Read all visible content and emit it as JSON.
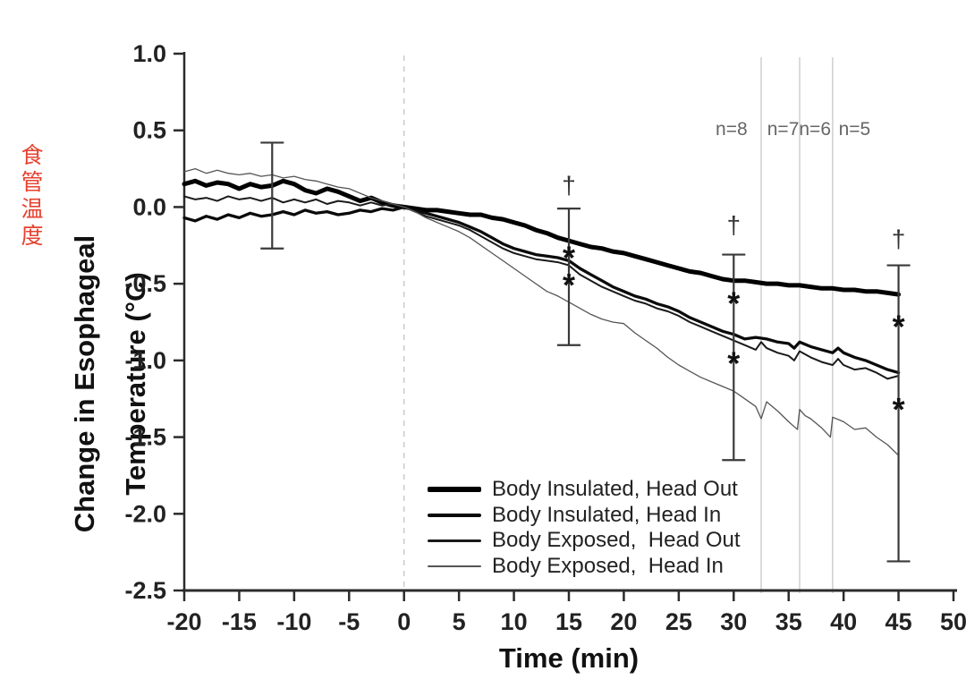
{
  "side_note": {
    "text": "食管温度",
    "color": "#e8412f"
  },
  "chart_data": {
    "type": "line",
    "title": "",
    "xlabel": "Time (min)",
    "ylabel_line1": "Change in Esophageal",
    "ylabel_line2": "Temperature (°C)",
    "xlim": [
      -20,
      50
    ],
    "ylim": [
      -2.5,
      1.0
    ],
    "x_ticks": [
      "-20",
      "-15",
      "-10",
      "-5",
      "0",
      "5",
      "10",
      "15",
      "20",
      "25",
      "30",
      "35",
      "40",
      "45",
      "50"
    ],
    "x_tick_values": [
      -20,
      -15,
      -10,
      -5,
      0,
      5,
      10,
      15,
      20,
      25,
      30,
      35,
      40,
      45,
      50
    ],
    "y_ticks": [
      "1.0",
      "0.5",
      "0.0",
      "-0.5",
      "-1.0",
      "-1.5",
      "-2.0",
      "-2.5"
    ],
    "y_tick_values": [
      1.0,
      0.5,
      0.0,
      -0.5,
      -1.0,
      -1.5,
      -2.0,
      -2.5
    ],
    "grid": "off",
    "reference_lines": {
      "dashed_x": 0,
      "gray_solid_x": [
        32.5,
        36,
        39
      ]
    },
    "n_labels": [
      {
        "text": "n=8",
        "t": 29.8,
        "v": 0.47
      },
      {
        "text": "n=7",
        "t": 34.5,
        "v": 0.47
      },
      {
        "text": "n=6",
        "t": 37.4,
        "v": 0.47
      },
      {
        "text": "n=5",
        "t": 41.0,
        "v": 0.47
      }
    ],
    "error_bars": [
      {
        "t": -12,
        "hi": 0.42,
        "lo": -0.27
      },
      {
        "t": 15,
        "hi": -0.01,
        "lo": -0.9
      },
      {
        "t": 30,
        "hi": -0.31,
        "lo": -1.65
      },
      {
        "t": 45,
        "hi": -0.38,
        "lo": -2.31
      }
    ],
    "daggers": [
      {
        "symbol": "†",
        "t": 15,
        "v": 0.14
      },
      {
        "symbol": "†",
        "t": 30,
        "v": -0.12
      },
      {
        "symbol": "†",
        "t": 45,
        "v": -0.21
      }
    ],
    "asterisks": [
      {
        "symbol": "*",
        "t": 15,
        "v": -0.32
      },
      {
        "symbol": "*",
        "t": 15,
        "v": -0.5
      },
      {
        "symbol": "*",
        "t": 30,
        "v": -0.62
      },
      {
        "symbol": "*",
        "t": 30,
        "v": -1.01
      },
      {
        "symbol": "*",
        "t": 45,
        "v": -0.77
      },
      {
        "symbol": "*",
        "t": 45,
        "v": -1.31
      }
    ],
    "legend_position": "bottom-center-inside",
    "series": [
      {
        "name": "Body Insulated, Head Out",
        "color": "#000000",
        "width": 5,
        "points": [
          [
            -20,
            0.15
          ],
          [
            -19,
            0.17
          ],
          [
            -18,
            0.14
          ],
          [
            -17,
            0.16
          ],
          [
            -16,
            0.15
          ],
          [
            -15,
            0.12
          ],
          [
            -14,
            0.15
          ],
          [
            -13,
            0.13
          ],
          [
            -12,
            0.14
          ],
          [
            -11,
            0.17
          ],
          [
            -10,
            0.15
          ],
          [
            -9,
            0.11
          ],
          [
            -8,
            0.09
          ],
          [
            -7,
            0.12
          ],
          [
            -6,
            0.1
          ],
          [
            -5,
            0.07
          ],
          [
            -4,
            0.04
          ],
          [
            -3,
            0.06
          ],
          [
            -2,
            0.03
          ],
          [
            -1,
            0.01
          ],
          [
            0,
            0
          ],
          [
            1,
            -0.01
          ],
          [
            2,
            -0.02
          ],
          [
            3,
            -0.02
          ],
          [
            4,
            -0.03
          ],
          [
            5,
            -0.04
          ],
          [
            6,
            -0.05
          ],
          [
            7,
            -0.05
          ],
          [
            8,
            -0.07
          ],
          [
            9,
            -0.08
          ],
          [
            10,
            -0.1
          ],
          [
            11,
            -0.12
          ],
          [
            12,
            -0.15
          ],
          [
            13,
            -0.17
          ],
          [
            14,
            -0.2
          ],
          [
            15,
            -0.22
          ],
          [
            16,
            -0.24
          ],
          [
            17,
            -0.26
          ],
          [
            18,
            -0.27
          ],
          [
            19,
            -0.29
          ],
          [
            20,
            -0.3
          ],
          [
            21,
            -0.32
          ],
          [
            22,
            -0.34
          ],
          [
            23,
            -0.36
          ],
          [
            24,
            -0.38
          ],
          [
            25,
            -0.4
          ],
          [
            26,
            -0.42
          ],
          [
            27,
            -0.43
          ],
          [
            28,
            -0.45
          ],
          [
            29,
            -0.47
          ],
          [
            30,
            -0.48
          ],
          [
            31,
            -0.48
          ],
          [
            32,
            -0.49
          ],
          [
            33,
            -0.5
          ],
          [
            34,
            -0.5
          ],
          [
            35,
            -0.51
          ],
          [
            36,
            -0.51
          ],
          [
            37,
            -0.52
          ],
          [
            38,
            -0.53
          ],
          [
            39,
            -0.53
          ],
          [
            40,
            -0.54
          ],
          [
            41,
            -0.54
          ],
          [
            42,
            -0.55
          ],
          [
            43,
            -0.55
          ],
          [
            44,
            -0.56
          ],
          [
            45,
            -0.57
          ]
        ]
      },
      {
        "name": "Body Insulated, Head In",
        "color": "#0a0a0a",
        "width": 3.3,
        "points": [
          [
            -20,
            -0.07
          ],
          [
            -19,
            -0.09
          ],
          [
            -18,
            -0.06
          ],
          [
            -17,
            -0.08
          ],
          [
            -16,
            -0.05
          ],
          [
            -15,
            -0.07
          ],
          [
            -14,
            -0.04
          ],
          [
            -13,
            -0.06
          ],
          [
            -12,
            -0.05
          ],
          [
            -11,
            -0.03
          ],
          [
            -10,
            -0.05
          ],
          [
            -9,
            -0.02
          ],
          [
            -8,
            -0.04
          ],
          [
            -7,
            -0.03
          ],
          [
            -6,
            -0.05
          ],
          [
            -5,
            -0.04
          ],
          [
            -4,
            -0.02
          ],
          [
            -3,
            -0.03
          ],
          [
            -2,
            -0.01
          ],
          [
            -1,
            -0.02
          ],
          [
            0,
            0
          ],
          [
            1,
            -0.02
          ],
          [
            2,
            -0.04
          ],
          [
            3,
            -0.06
          ],
          [
            4,
            -0.08
          ],
          [
            5,
            -0.1
          ],
          [
            6,
            -0.13
          ],
          [
            7,
            -0.16
          ],
          [
            8,
            -0.2
          ],
          [
            9,
            -0.24
          ],
          [
            10,
            -0.27
          ],
          [
            11,
            -0.29
          ],
          [
            12,
            -0.31
          ],
          [
            13,
            -0.32
          ],
          [
            14,
            -0.33
          ],
          [
            15,
            -0.35
          ],
          [
            16,
            -0.4
          ],
          [
            17,
            -0.44
          ],
          [
            18,
            -0.48
          ],
          [
            19,
            -0.52
          ],
          [
            20,
            -0.55
          ],
          [
            21,
            -0.58
          ],
          [
            22,
            -0.6
          ],
          [
            23,
            -0.63
          ],
          [
            24,
            -0.65
          ],
          [
            25,
            -0.68
          ],
          [
            26,
            -0.72
          ],
          [
            27,
            -0.75
          ],
          [
            28,
            -0.78
          ],
          [
            29,
            -0.81
          ],
          [
            30,
            -0.83
          ],
          [
            31,
            -0.86
          ],
          [
            32,
            -0.85
          ],
          [
            33,
            -0.86
          ],
          [
            34,
            -0.88
          ],
          [
            35,
            -0.89
          ],
          [
            35.5,
            -0.92
          ],
          [
            36,
            -0.88
          ],
          [
            37,
            -0.91
          ],
          [
            38,
            -0.93
          ],
          [
            39,
            -0.95
          ],
          [
            39.5,
            -0.92
          ],
          [
            40,
            -0.95
          ],
          [
            41,
            -0.98
          ],
          [
            42,
            -1.0
          ],
          [
            43,
            -1.03
          ],
          [
            44,
            -1.06
          ],
          [
            45,
            -1.08
          ]
        ]
      },
      {
        "name": "Body Exposed,  Head Out",
        "color": "#1a1a1a",
        "width": 2,
        "points": [
          [
            -20,
            0.07
          ],
          [
            -19,
            0.05
          ],
          [
            -18,
            0.06
          ],
          [
            -17,
            0.04
          ],
          [
            -16,
            0.07
          ],
          [
            -15,
            0.05
          ],
          [
            -14,
            0.06
          ],
          [
            -13,
            0.04
          ],
          [
            -12,
            0.06
          ],
          [
            -11,
            0.03
          ],
          [
            -10,
            0.05
          ],
          [
            -9,
            0.03
          ],
          [
            -8,
            0.05
          ],
          [
            -7,
            0.02
          ],
          [
            -6,
            0.04
          ],
          [
            -5,
            0.03
          ],
          [
            -4,
            0.01
          ],
          [
            -3,
            0.03
          ],
          [
            -2,
            0.01
          ],
          [
            -1,
            0.02
          ],
          [
            0,
            0
          ],
          [
            1,
            -0.03
          ],
          [
            2,
            -0.06
          ],
          [
            3,
            -0.08
          ],
          [
            4,
            -0.1
          ],
          [
            5,
            -0.12
          ],
          [
            6,
            -0.15
          ],
          [
            7,
            -0.19
          ],
          [
            8,
            -0.23
          ],
          [
            9,
            -0.27
          ],
          [
            10,
            -0.3
          ],
          [
            11,
            -0.32
          ],
          [
            12,
            -0.34
          ],
          [
            13,
            -0.35
          ],
          [
            14,
            -0.36
          ],
          [
            15,
            -0.38
          ],
          [
            16,
            -0.44
          ],
          [
            17,
            -0.48
          ],
          [
            18,
            -0.52
          ],
          [
            19,
            -0.55
          ],
          [
            20,
            -0.58
          ],
          [
            21,
            -0.61
          ],
          [
            22,
            -0.63
          ],
          [
            23,
            -0.66
          ],
          [
            24,
            -0.68
          ],
          [
            25,
            -0.71
          ],
          [
            26,
            -0.75
          ],
          [
            27,
            -0.78
          ],
          [
            28,
            -0.81
          ],
          [
            29,
            -0.84
          ],
          [
            30,
            -0.87
          ],
          [
            31,
            -0.9
          ],
          [
            32,
            -0.93
          ],
          [
            32.5,
            -0.88
          ],
          [
            33,
            -0.92
          ],
          [
            34,
            -0.95
          ],
          [
            35,
            -0.97
          ],
          [
            35.5,
            -1.0
          ],
          [
            36,
            -0.94
          ],
          [
            37,
            -0.98
          ],
          [
            38,
            -1.01
          ],
          [
            39,
            -1.03
          ],
          [
            39.5,
            -0.99
          ],
          [
            40,
            -1.03
          ],
          [
            41,
            -1.06
          ],
          [
            42,
            -1.05
          ],
          [
            43,
            -1.08
          ],
          [
            44,
            -1.12
          ],
          [
            45,
            -1.1
          ]
        ]
      },
      {
        "name": "Body Exposed,  Head In",
        "color": "#555555",
        "width": 1.3,
        "points": [
          [
            -20,
            0.23
          ],
          [
            -19,
            0.25
          ],
          [
            -18,
            0.22
          ],
          [
            -17,
            0.24
          ],
          [
            -16,
            0.22
          ],
          [
            -15,
            0.21
          ],
          [
            -14,
            0.22
          ],
          [
            -13,
            0.2
          ],
          [
            -12,
            0.21
          ],
          [
            -11,
            0.19
          ],
          [
            -10,
            0.2
          ],
          [
            -9,
            0.18
          ],
          [
            -8,
            0.17
          ],
          [
            -7,
            0.15
          ],
          [
            -6,
            0.13
          ],
          [
            -5,
            0.12
          ],
          [
            -4,
            0.09
          ],
          [
            -3,
            0.06
          ],
          [
            -2,
            0.04
          ],
          [
            -1,
            0.02
          ],
          [
            0,
            0
          ],
          [
            1,
            -0.03
          ],
          [
            2,
            -0.07
          ],
          [
            3,
            -0.1
          ],
          [
            4,
            -0.13
          ],
          [
            5,
            -0.16
          ],
          [
            6,
            -0.2
          ],
          [
            7,
            -0.25
          ],
          [
            8,
            -0.3
          ],
          [
            9,
            -0.35
          ],
          [
            10,
            -0.4
          ],
          [
            11,
            -0.45
          ],
          [
            12,
            -0.5
          ],
          [
            13,
            -0.55
          ],
          [
            14,
            -0.58
          ],
          [
            15,
            -0.62
          ],
          [
            16,
            -0.66
          ],
          [
            17,
            -0.7
          ],
          [
            18,
            -0.73
          ],
          [
            19,
            -0.75
          ],
          [
            20,
            -0.76
          ],
          [
            21,
            -0.82
          ],
          [
            22,
            -0.87
          ],
          [
            23,
            -0.92
          ],
          [
            24,
            -0.98
          ],
          [
            25,
            -1.03
          ],
          [
            26,
            -1.07
          ],
          [
            27,
            -1.11
          ],
          [
            28,
            -1.14
          ],
          [
            29,
            -1.17
          ],
          [
            30,
            -1.2
          ],
          [
            31,
            -1.25
          ],
          [
            32,
            -1.3
          ],
          [
            32.5,
            -1.38
          ],
          [
            33,
            -1.27
          ],
          [
            34,
            -1.33
          ],
          [
            35,
            -1.4
          ],
          [
            35.8,
            -1.45
          ],
          [
            36,
            -1.32
          ],
          [
            36.5,
            -1.36
          ],
          [
            37,
            -1.38
          ],
          [
            38,
            -1.44
          ],
          [
            38.8,
            -1.5
          ],
          [
            39,
            -1.37
          ],
          [
            40,
            -1.4
          ],
          [
            41,
            -1.45
          ],
          [
            42,
            -1.44
          ],
          [
            43,
            -1.5
          ],
          [
            44,
            -1.55
          ],
          [
            45,
            -1.62
          ]
        ]
      }
    ]
  }
}
